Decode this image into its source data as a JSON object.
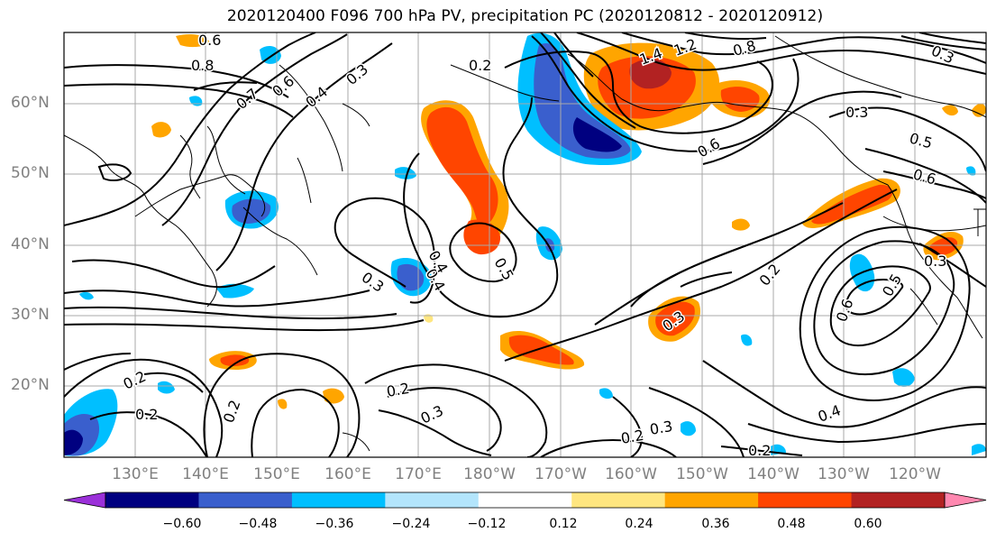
{
  "title": "2020120400 F096 700 hPa PV, precipitation PC (2020120812 - 2020120912)",
  "lat_labels": [
    "60°N",
    "50°N",
    "40°N",
    "30°N",
    "20°N"
  ],
  "lon_labels": [
    "130°E",
    "140°E",
    "150°E",
    "160°E",
    "170°E",
    "180°W",
    "170°W",
    "160°W",
    "150°W",
    "140°W",
    "130°W",
    "120°W"
  ],
  "contour_labels": [
    "0.6",
    "0.8",
    "0.7",
    "0.6",
    "0.4",
    "0.3",
    "0.2",
    "1.4",
    "1.2",
    "0.8",
    "0.3",
    "0.5",
    "0.6",
    "0.6",
    "0.4",
    "0.3",
    "0.4",
    "0.5",
    "0.3",
    "0.2",
    "0.3",
    "0.2",
    "0.2",
    "0.2",
    "0.3",
    "0.2",
    "0.4",
    "0.2",
    "0.5",
    "0.6",
    "0.3",
    "0.2",
    "0.3"
  ],
  "colorbar": {
    "ticks": [
      "−0.60",
      "−0.48",
      "−0.36",
      "−0.24",
      "−0.12",
      "0.12",
      "0.24",
      "0.36",
      "0.48",
      "0.60"
    ],
    "colors": [
      "#9b30d9",
      "#000080",
      "#3a5fcd",
      "#00bfff",
      "#b3e5fc",
      "#ffffff",
      "#ffe680",
      "#ffa500",
      "#ff4500",
      "#b22222",
      "#ff88b0"
    ]
  },
  "shading_colors": {
    "neg_light": "#b3e5fc",
    "neg_mid": "#00bfff",
    "neg_strong": "#3a5fcd",
    "neg_max": "#000080",
    "pos_light": "#ffe680",
    "pos_mid": "#ffa500",
    "pos_strong": "#ff4500",
    "pos_max": "#b22222"
  }
}
